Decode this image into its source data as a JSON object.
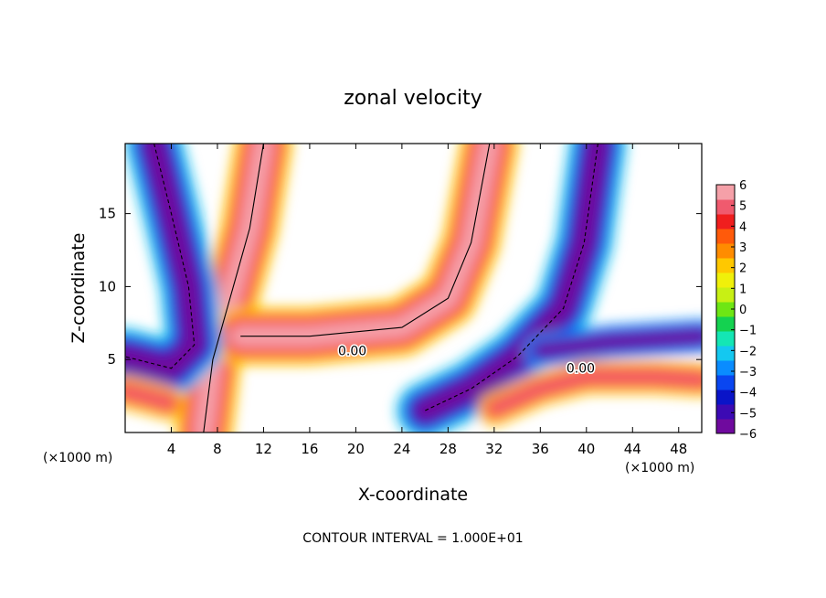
{
  "chart_data": {
    "type": "heatmap",
    "title": "zonal velocity",
    "xlabel": "X-coordinate",
    "ylabel": "Z-coordinate",
    "x_unit_left": "(×1000 m)",
    "x_unit_right": "(×1000 m)",
    "footer": "CONTOUR INTERVAL = 1.000E+01",
    "xlim": [
      0,
      50
    ],
    "ylim": [
      0,
      19.8
    ],
    "x_ticks": [
      4,
      8,
      12,
      16,
      20,
      24,
      28,
      32,
      36,
      40,
      44,
      48
    ],
    "y_ticks": [
      5,
      10,
      15
    ],
    "colorbar": {
      "range": [
        -6,
        6
      ],
      "ticks": [
        6,
        5,
        4,
        3,
        2,
        1,
        0,
        -1,
        -2,
        -3,
        -4,
        -5,
        -6
      ],
      "colors": [
        "#6f0a9e",
        "#3c0ab4",
        "#0a14c8",
        "#0a46f0",
        "#0a8cff",
        "#14c8f0",
        "#14e6b4",
        "#14d250",
        "#6ee614",
        "#c8f014",
        "#f0f00a",
        "#ffc800",
        "#ff8c00",
        "#ff5a0a",
        "#f01e1e",
        "#f05a6e",
        "#f5a0a8"
      ]
    },
    "contour_labels": [
      {
        "text": "0.00",
        "x": 19.7,
        "y": 5.3
      },
      {
        "text": "0.00",
        "x": 39.5,
        "y": 4.1
      }
    ],
    "field_features": [
      {
        "kind": "jet",
        "sign": "positive",
        "peak": 6,
        "path": [
          [
            6.8,
            0
          ],
          [
            7.6,
            5
          ],
          [
            9.2,
            9.5
          ],
          [
            10.8,
            14
          ],
          [
            12,
            19.8
          ]
        ]
      },
      {
        "kind": "jet",
        "sign": "positive",
        "peak": 6,
        "path": [
          [
            10,
            6.6
          ],
          [
            16,
            6.6
          ],
          [
            24,
            7.2
          ],
          [
            28,
            9.2
          ],
          [
            30,
            13
          ],
          [
            31.6,
            19.8
          ]
        ]
      },
      {
        "kind": "jet",
        "sign": "negative",
        "peak": -6,
        "path": [
          [
            2.5,
            19.8
          ],
          [
            4,
            15
          ],
          [
            5.5,
            10
          ],
          [
            6,
            6
          ],
          [
            4,
            4.4
          ],
          [
            0,
            5.2
          ]
        ]
      },
      {
        "kind": "jet",
        "sign": "negative",
        "peak": -6,
        "path": [
          [
            41,
            19.8
          ],
          [
            39.8,
            13
          ],
          [
            38,
            8.5
          ],
          [
            34,
            5.2
          ],
          [
            30,
            3
          ],
          [
            26,
            1.5
          ]
        ]
      },
      {
        "kind": "band",
        "sign": "negative",
        "peak": -6,
        "path": [
          [
            36,
            5.6
          ],
          [
            42,
            6.2
          ],
          [
            46,
            6.4
          ],
          [
            50,
            6.6
          ]
        ]
      },
      {
        "kind": "band",
        "sign": "positive",
        "peak": 5,
        "path": [
          [
            32,
            1.6
          ],
          [
            36,
            3
          ],
          [
            40,
            3.8
          ],
          [
            46,
            3.8
          ],
          [
            50,
            3.6
          ]
        ]
      },
      {
        "kind": "band",
        "sign": "positive",
        "peak": 5,
        "path": [
          [
            0,
            2.8
          ],
          [
            2,
            2.4
          ],
          [
            3.8,
            2.0
          ]
        ]
      }
    ]
  }
}
